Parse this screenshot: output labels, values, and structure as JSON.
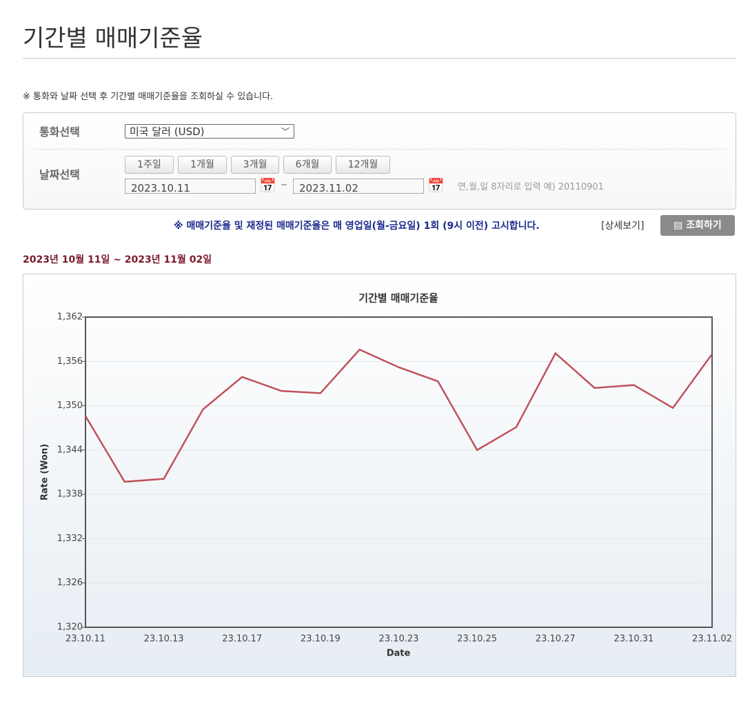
{
  "header": {
    "title": "기간별 매매기준율"
  },
  "notice": "※ 통화와 날짜 선택 후 기간별 매매기준율을 조회하실 수 있습니다.",
  "form": {
    "currency_label": "통화선택",
    "currency_value": "미국 달러 (USD)",
    "date_label": "날짜선택",
    "period_buttons": [
      "1주일",
      "1개월",
      "3개월",
      "6개월",
      "12개월"
    ],
    "start_date": "2023.10.11",
    "separator": "~",
    "end_date": "2023.11.02",
    "hint": "연,월,일 8자리로 입력 예) 20110901"
  },
  "info": {
    "text": "※ 매매기준율 및 재정된 매매기준율은 매 영업일(월-금요일) 1회 (9시 이전) 고시합니다.",
    "detail_link": "[상세보기]",
    "search_button": "조회하기"
  },
  "range_text": "2023년 10월 11일 ~ 2023년 11월 02일",
  "chart_data": {
    "type": "line",
    "title": "기간별 매매기준율",
    "x_label": "Date",
    "y_label": "Rate (Won)",
    "color": "#c0505a",
    "grid": true,
    "categories": [
      "23.10.11",
      null,
      "23.10.13",
      null,
      "23.10.17",
      null,
      "23.10.19",
      null,
      "23.10.23",
      null,
      "23.10.25",
      null,
      "23.10.27",
      null,
      "23.10.31",
      null,
      "23.11.02"
    ],
    "values": [
      1348.6,
      1339.7,
      1340.1,
      1349.5,
      1353.9,
      1352.0,
      1351.7,
      1357.6,
      1355.2,
      1353.3,
      1344.0,
      1347.1,
      1357.1,
      1352.4,
      1352.8,
      1349.7,
      1357.0
    ],
    "ylim": [
      1320,
      1362
    ],
    "yticks": [
      {
        "value": 1320,
        "label": "1,320"
      },
      {
        "value": 1326,
        "label": "1,326"
      },
      {
        "value": 1332,
        "label": "1,332"
      },
      {
        "value": 1338,
        "label": "1,338"
      },
      {
        "value": 1344,
        "label": "1,344"
      },
      {
        "value": 1350,
        "label": "1,350"
      },
      {
        "value": 1356,
        "label": "1,356"
      },
      {
        "value": 1362,
        "label": "1,362"
      }
    ]
  }
}
